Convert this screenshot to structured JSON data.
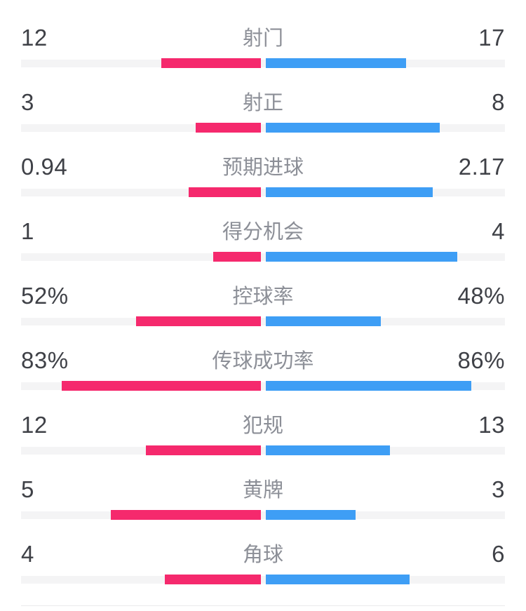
{
  "chart_data": {
    "type": "bar",
    "variant": "head-to-head match statistics, center-anchored horizontal bars",
    "legend_position": "none",
    "grid": false,
    "home_color": "#F5296D",
    "away_color": "#3E9EF5",
    "track_color": "#F4F4F5",
    "value_text_color": "#3F4147",
    "label_text_color": "#8C8F97",
    "rows": [
      {
        "label": "射门",
        "home": "12",
        "away": "17",
        "home_val": 12,
        "away_val": 17,
        "scale": "share-of-sum"
      },
      {
        "label": "射正",
        "home": "3",
        "away": "8",
        "home_val": 3,
        "away_val": 8,
        "scale": "share-of-sum"
      },
      {
        "label": "预期进球",
        "home": "0.94",
        "away": "2.17",
        "home_val": 0.94,
        "away_val": 2.17,
        "scale": "share-of-sum"
      },
      {
        "label": "得分机会",
        "home": "1",
        "away": "4",
        "home_val": 1,
        "away_val": 4,
        "scale": "share-of-sum"
      },
      {
        "label": "控球率",
        "home": "52%",
        "away": "48%",
        "home_val": 52,
        "away_val": 48,
        "scale": "percent"
      },
      {
        "label": "传球成功率",
        "home": "83%",
        "away": "86%",
        "home_val": 83,
        "away_val": 86,
        "scale": "percent"
      },
      {
        "label": "犯规",
        "home": "12",
        "away": "13",
        "home_val": 12,
        "away_val": 13,
        "scale": "share-of-sum"
      },
      {
        "label": "黄牌",
        "home": "5",
        "away": "3",
        "home_val": 5,
        "away_val": 3,
        "scale": "share-of-sum"
      },
      {
        "label": "角球",
        "home": "4",
        "away": "6",
        "home_val": 4,
        "away_val": 6,
        "scale": "share-of-sum"
      }
    ]
  }
}
